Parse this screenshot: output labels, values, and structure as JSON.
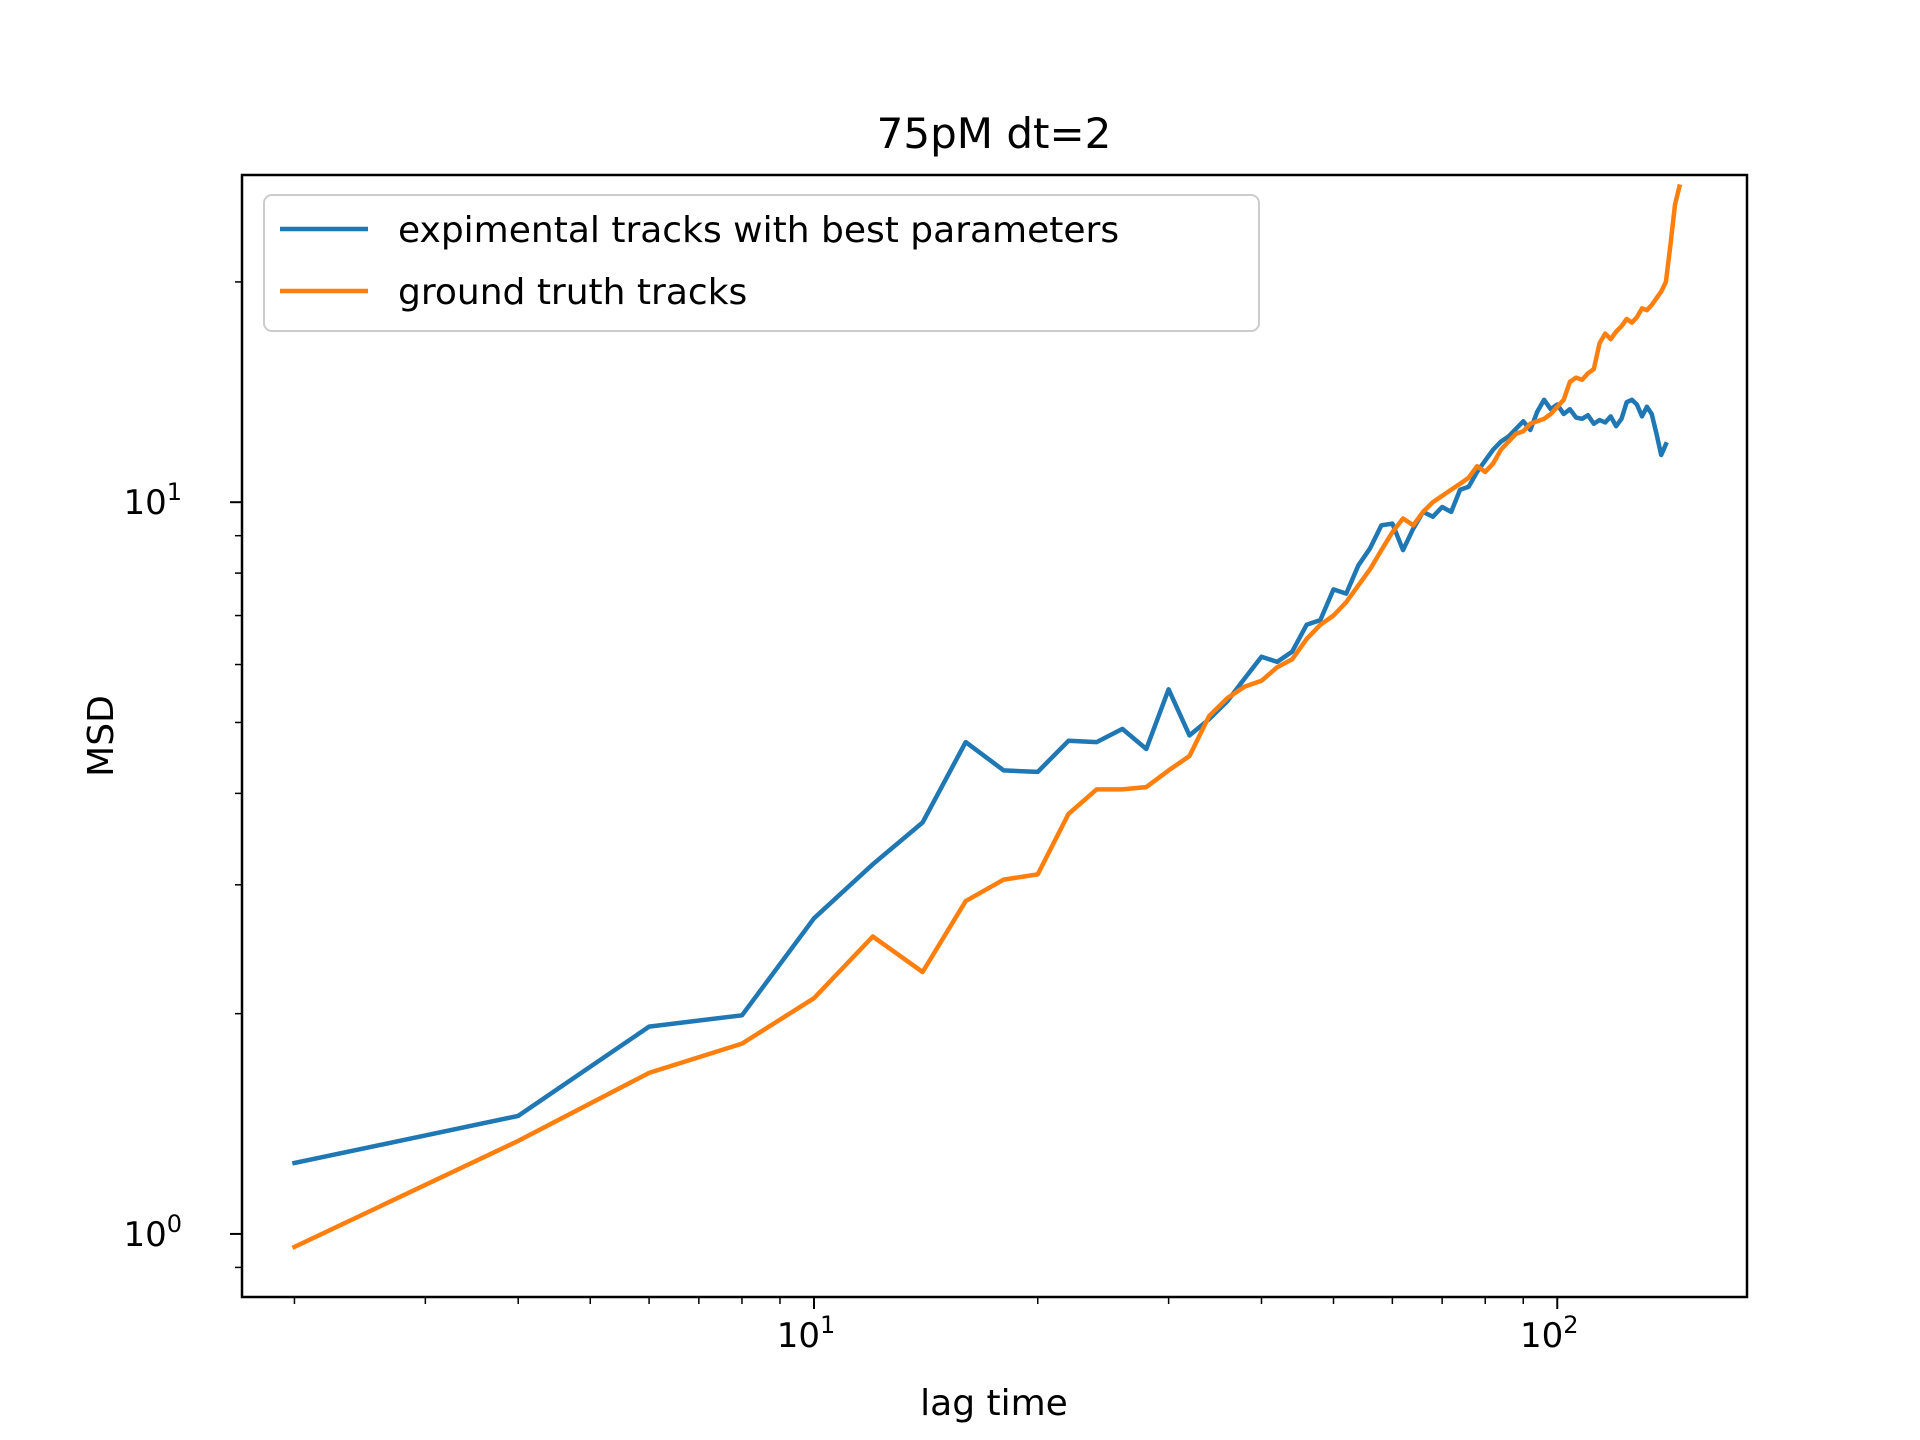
{
  "chart_data": {
    "type": "line",
    "title": "75pM dt=2",
    "xlabel": "lag time",
    "ylabel": "MSD",
    "xscale": "log",
    "yscale": "log",
    "xlim": [
      1.7,
      180
    ],
    "ylim": [
      0.82,
      28
    ],
    "x_ticks": [
      {
        "value": 10,
        "base": "10",
        "exp": "1"
      },
      {
        "value": 100,
        "base": "10",
        "exp": "2"
      }
    ],
    "y_ticks": [
      {
        "value": 1,
        "base": "10",
        "exp": "0"
      },
      {
        "value": 10,
        "base": "10",
        "exp": "1"
      }
    ],
    "grid": false,
    "legend_position": "top-left",
    "series": [
      {
        "name": "expimental tracks with best parameters",
        "color": "#1f77b4",
        "points": [
          [
            2,
            1.25
          ],
          [
            4,
            1.45
          ],
          [
            6,
            1.92
          ],
          [
            8,
            1.99
          ],
          [
            10,
            2.7
          ],
          [
            12,
            3.2
          ],
          [
            14,
            3.65
          ],
          [
            16,
            4.7
          ],
          [
            18,
            4.3
          ],
          [
            20,
            4.28
          ],
          [
            22,
            4.72
          ],
          [
            24,
            4.7
          ],
          [
            26,
            4.9
          ],
          [
            28,
            4.6
          ],
          [
            30,
            5.55
          ],
          [
            32,
            4.8
          ],
          [
            34,
            5.05
          ],
          [
            36,
            5.35
          ],
          [
            38,
            5.75
          ],
          [
            40,
            6.15
          ],
          [
            42,
            6.05
          ],
          [
            44,
            6.25
          ],
          [
            46,
            6.8
          ],
          [
            48,
            6.9
          ],
          [
            50,
            7.6
          ],
          [
            52,
            7.5
          ],
          [
            54,
            8.2
          ],
          [
            56,
            8.65
          ],
          [
            58,
            9.3
          ],
          [
            60,
            9.35
          ],
          [
            62,
            8.6
          ],
          [
            64,
            9.2
          ],
          [
            66,
            9.7
          ],
          [
            68,
            9.55
          ],
          [
            70,
            9.85
          ],
          [
            72,
            9.7
          ],
          [
            74,
            10.4
          ],
          [
            76,
            10.5
          ],
          [
            78,
            11.0
          ],
          [
            80,
            11.4
          ],
          [
            82,
            11.8
          ],
          [
            84,
            12.1
          ],
          [
            86,
            12.3
          ],
          [
            88,
            12.6
          ],
          [
            90,
            12.9
          ],
          [
            92,
            12.55
          ],
          [
            94,
            13.3
          ],
          [
            96,
            13.8
          ],
          [
            98,
            13.4
          ],
          [
            100,
            13.6
          ],
          [
            102,
            13.2
          ],
          [
            104,
            13.4
          ],
          [
            106,
            13.05
          ],
          [
            108,
            13.0
          ],
          [
            110,
            13.15
          ],
          [
            112,
            12.8
          ],
          [
            114,
            12.95
          ],
          [
            116,
            12.85
          ],
          [
            118,
            13.1
          ],
          [
            120,
            12.7
          ],
          [
            122,
            13.0
          ],
          [
            124,
            13.7
          ],
          [
            126,
            13.8
          ],
          [
            128,
            13.6
          ],
          [
            130,
            13.1
          ],
          [
            132,
            13.5
          ],
          [
            134,
            13.2
          ],
          [
            136,
            12.4
          ],
          [
            138,
            11.6
          ],
          [
            140,
            12.0
          ]
        ]
      },
      {
        "name": "ground truth tracks",
        "color": "#ff7f0e",
        "points": [
          [
            2,
            0.96
          ],
          [
            4,
            1.34
          ],
          [
            6,
            1.66
          ],
          [
            8,
            1.82
          ],
          [
            10,
            2.1
          ],
          [
            12,
            2.55
          ],
          [
            14,
            2.28
          ],
          [
            16,
            2.85
          ],
          [
            18,
            3.05
          ],
          [
            20,
            3.1
          ],
          [
            22,
            3.75
          ],
          [
            24,
            4.05
          ],
          [
            26,
            4.05
          ],
          [
            28,
            4.08
          ],
          [
            30,
            4.3
          ],
          [
            32,
            4.5
          ],
          [
            34,
            5.1
          ],
          [
            36,
            5.4
          ],
          [
            38,
            5.6
          ],
          [
            40,
            5.7
          ],
          [
            42,
            5.95
          ],
          [
            44,
            6.1
          ],
          [
            46,
            6.5
          ],
          [
            48,
            6.8
          ],
          [
            50,
            7.0
          ],
          [
            52,
            7.3
          ],
          [
            54,
            7.7
          ],
          [
            56,
            8.1
          ],
          [
            58,
            8.6
          ],
          [
            60,
            9.1
          ],
          [
            62,
            9.5
          ],
          [
            64,
            9.3
          ],
          [
            66,
            9.7
          ],
          [
            68,
            10.0
          ],
          [
            70,
            10.2
          ],
          [
            72,
            10.4
          ],
          [
            74,
            10.6
          ],
          [
            76,
            10.8
          ],
          [
            78,
            11.2
          ],
          [
            80,
            11.0
          ],
          [
            82,
            11.3
          ],
          [
            84,
            11.8
          ],
          [
            86,
            12.1
          ],
          [
            88,
            12.4
          ],
          [
            90,
            12.5
          ],
          [
            92,
            12.8
          ],
          [
            94,
            12.9
          ],
          [
            96,
            13.0
          ],
          [
            98,
            13.2
          ],
          [
            100,
            13.5
          ],
          [
            102,
            13.8
          ],
          [
            104,
            14.6
          ],
          [
            106,
            14.8
          ],
          [
            108,
            14.7
          ],
          [
            110,
            15.0
          ],
          [
            112,
            15.2
          ],
          [
            114,
            16.5
          ],
          [
            116,
            17.0
          ],
          [
            118,
            16.7
          ],
          [
            120,
            17.1
          ],
          [
            122,
            17.4
          ],
          [
            124,
            17.8
          ],
          [
            126,
            17.6
          ],
          [
            128,
            17.9
          ],
          [
            130,
            18.4
          ],
          [
            132,
            18.3
          ],
          [
            134,
            18.6
          ],
          [
            136,
            19.0
          ],
          [
            138,
            19.4
          ],
          [
            140,
            20.0
          ],
          [
            142,
            22.5
          ],
          [
            144,
            25.5
          ],
          [
            146,
            27.0
          ]
        ]
      }
    ]
  }
}
